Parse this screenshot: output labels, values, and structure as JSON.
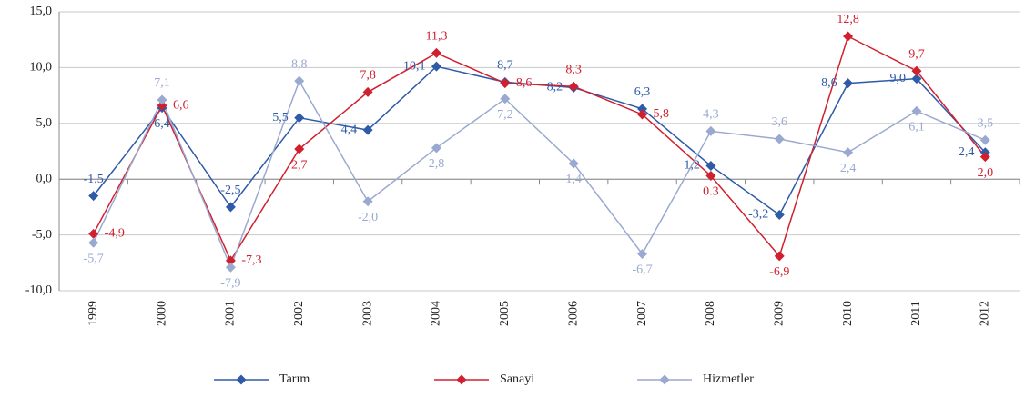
{
  "chart_data": {
    "type": "line",
    "categories": [
      "1999",
      "2000",
      "2001",
      "2002",
      "2003",
      "2004",
      "2005",
      "2006",
      "2007",
      "2008",
      "2009",
      "2010",
      "2011",
      "2012"
    ],
    "series": [
      {
        "name": "Tarım",
        "color": "#2e5aa8",
        "values": [
          -1.5,
          6.4,
          -2.5,
          5.5,
          4.4,
          10.1,
          8.7,
          8.2,
          6.3,
          1.2,
          -3.2,
          8.6,
          9.0,
          2.4
        ],
        "value_labels": [
          "-1,5",
          "6,4",
          "-2,5",
          "5,5",
          "4,4",
          "10,1",
          "8,7",
          "8,2",
          "6,3",
          "1,2",
          "-3,2",
          "8,6",
          "9,0",
          "2,4"
        ]
      },
      {
        "name": "Sanayi",
        "color": "#d0202e",
        "values": [
          -4.9,
          6.6,
          -7.3,
          2.7,
          7.8,
          11.3,
          8.6,
          8.3,
          5.8,
          0.3,
          -6.9,
          12.8,
          9.7,
          2.0
        ],
        "value_labels": [
          "-4,9",
          "6,6",
          "-7,3",
          "2,7",
          "7,8",
          "11,3",
          "8,6",
          "8,3",
          "5,8",
          "0.3",
          "-6,9",
          "12,8",
          "9,7",
          "2,0"
        ]
      },
      {
        "name": "Hizmetler",
        "color": "#9aa9d0",
        "values": [
          -5.7,
          7.1,
          -7.9,
          8.8,
          -2.0,
          2.8,
          7.2,
          1.4,
          -6.7,
          4.3,
          3.6,
          2.4,
          6.1,
          3.5
        ],
        "value_labels": [
          "-5,7",
          "7,1",
          "-7,9",
          "8,8",
          "-2,0",
          "2,8",
          "7,2",
          "1,4",
          "-6,7",
          "4,3",
          "3,6",
          "2,4",
          "6,1",
          "3,5"
        ]
      }
    ],
    "ylim": [
      -10,
      15
    ],
    "yticks": [
      {
        "value": -10,
        "label": "-10,0"
      },
      {
        "value": -5,
        "label": "-5,0"
      },
      {
        "value": 0,
        "label": "0,0"
      },
      {
        "value": 5,
        "label": "5,0"
      },
      {
        "value": 10,
        "label": "10,0"
      },
      {
        "value": 15,
        "label": "15,0"
      }
    ],
    "grid": true,
    "legend": "bottom"
  }
}
